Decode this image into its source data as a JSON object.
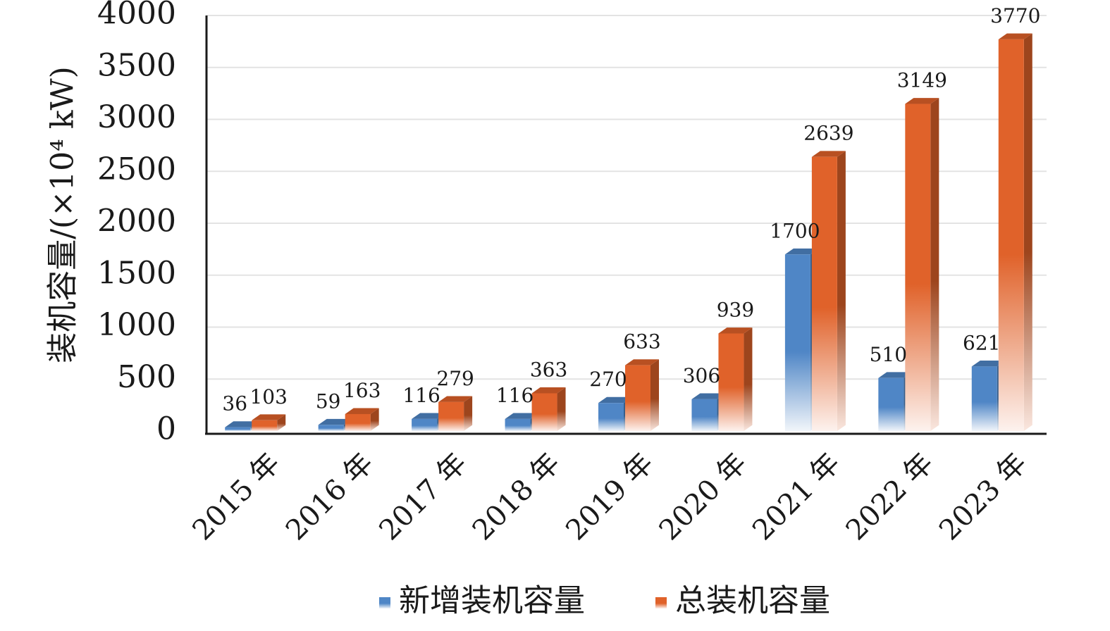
{
  "chart_data": {
    "type": "bar",
    "categories": [
      "2015 年",
      "2016 年",
      "2017 年",
      "2018 年",
      "2019 年",
      "2020 年",
      "2021 年",
      "2022 年",
      "2023 年"
    ],
    "series": [
      {
        "name": "新增装机容量",
        "color": "#4f86c6",
        "values": [
          36,
          59,
          116,
          116,
          270,
          306,
          1700,
          510,
          621
        ]
      },
      {
        "name": "总装机容量",
        "color": "#e0622a",
        "values": [
          103,
          163,
          279,
          363,
          633,
          939,
          2639,
          3149,
          3770
        ]
      }
    ],
    "ylabel": "装机容量/(×10⁴ kW)",
    "ylim": [
      0,
      4000
    ],
    "yticks": [
      0,
      500,
      1000,
      1500,
      2000,
      2500,
      3000,
      3500,
      4000
    ],
    "grid": true,
    "legend": "bottom"
  }
}
